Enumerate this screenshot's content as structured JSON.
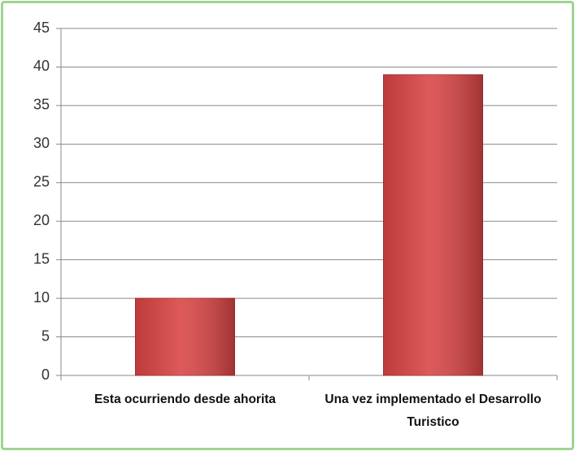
{
  "chart_data": {
    "type": "bar",
    "categories": [
      "Esta ocurriendo desde ahorita",
      "Una vez implementado el Desarrollo Turistico"
    ],
    "values": [
      10,
      39
    ],
    "color": "#d84343",
    "ylim": [
      0,
      45
    ],
    "yticks": [
      0,
      5,
      10,
      15,
      20,
      25,
      30,
      35,
      40,
      45
    ],
    "grid": true
  }
}
